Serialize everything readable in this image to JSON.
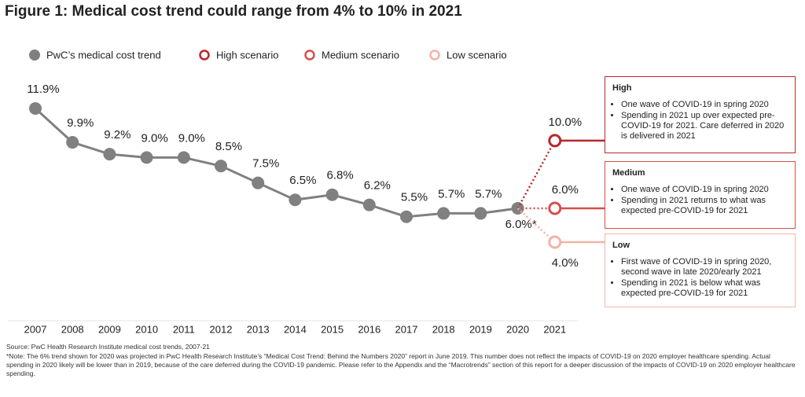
{
  "chart_data": {
    "type": "line",
    "title": "Figure 1: Medical cost trend could range from 4% to 10% in 2021",
    "categories": [
      "2007",
      "2008",
      "2009",
      "2010",
      "2011",
      "2012",
      "2013",
      "2014",
      "2015",
      "2016",
      "2017",
      "2018",
      "2019",
      "2020",
      "2021"
    ],
    "series": [
      {
        "name": "PwC’s medical cost trend",
        "color": "#808080",
        "values": [
          11.9,
          9.9,
          9.2,
          9.0,
          9.0,
          8.5,
          7.5,
          6.5,
          6.8,
          6.2,
          5.5,
          5.7,
          5.7,
          6.0,
          null
        ],
        "value_labels": [
          "11.9%",
          "9.9%",
          "9.2%",
          "9.0%",
          "9.0%",
          "8.5%",
          "7.5%",
          "6.5%",
          "6.8%",
          "6.2%",
          "5.5%",
          "5.7%",
          "5.7%",
          "6.0%*",
          null
        ]
      },
      {
        "name": "High scenario",
        "color": "#b8272d",
        "values": [
          null,
          null,
          null,
          null,
          null,
          null,
          null,
          null,
          null,
          null,
          null,
          null,
          null,
          null,
          10.0
        ],
        "value_labels": [
          null,
          null,
          null,
          null,
          null,
          null,
          null,
          null,
          null,
          null,
          null,
          null,
          null,
          null,
          "10.0%"
        ]
      },
      {
        "name": "Medium scenario",
        "color": "#d4504c",
        "values": [
          null,
          null,
          null,
          null,
          null,
          null,
          null,
          null,
          null,
          null,
          null,
          null,
          null,
          null,
          6.0
        ],
        "value_labels": [
          null,
          null,
          null,
          null,
          null,
          null,
          null,
          null,
          null,
          null,
          null,
          null,
          null,
          null,
          "6.0%"
        ]
      },
      {
        "name": "Low scenario",
        "color": "#f2b4a6",
        "values": [
          null,
          null,
          null,
          null,
          null,
          null,
          null,
          null,
          null,
          null,
          null,
          null,
          null,
          null,
          4.0
        ],
        "value_labels": [
          null,
          null,
          null,
          null,
          null,
          null,
          null,
          null,
          null,
          null,
          null,
          null,
          null,
          null,
          "4.0%"
        ]
      }
    ],
    "annotations": [
      {
        "title": "High",
        "bullets": [
          "One wave of COVID-19 in spring 2020",
          "Spending in 2021 up over expected pre-COVID-19 for 2021. Care deferred in 2020 is delivered in 2021"
        ]
      },
      {
        "title": "Medium",
        "bullets": [
          "One wave of COVID-19 in spring 2020",
          "Spending in 2021 returns to what was expected pre-COVID-19 for 2021"
        ]
      },
      {
        "title": "Low",
        "bullets": [
          "First wave of COVID-19 in spring 2020, second wave in late 2020/early 2021",
          "Spending in 2021 is below what was expected pre-COVID-19 for 2021"
        ]
      }
    ],
    "source": "Source: PwC Health Research Institute medical cost trends, 2007-21",
    "note": "*Note: The 6% trend shown for 2020 was projected in PwC Health Research Institute’s “Medical Cost Trend: Behind the Numbers 2020” report in June 2019. This number does not reflect the impacts of COVID-19 on 2020 employer healthcare spending. Actual spending in 2020 likely will be lower than in 2019, because of the care deferred during the COVID-19 pandemic. Please refer to the Appendix and the “Macrotrends” section of this report for a deeper discussion of the impacts of COVID-19 on 2020 employer healthcare spending."
  }
}
